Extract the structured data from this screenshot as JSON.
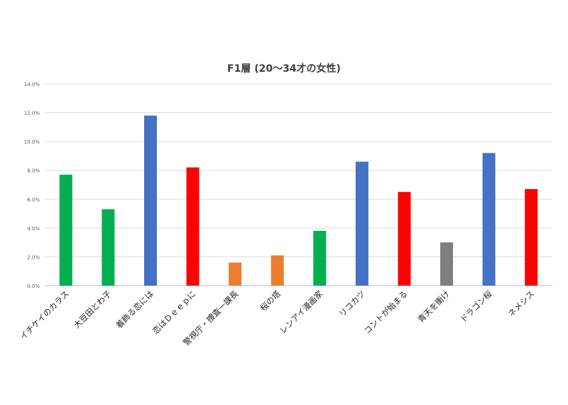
{
  "chart_data": {
    "type": "bar",
    "title": "F1層 (20～34才の女性)",
    "xlabel": "",
    "ylabel": "",
    "ylim": [
      0,
      14
    ],
    "y_ticks": [
      "0.0%",
      "2.0%",
      "4.0%",
      "6.0%",
      "8.0%",
      "10.0%",
      "12.0%",
      "14.0%"
    ],
    "grid": true,
    "legend": "none",
    "categories": [
      "イチケイのカラス",
      "大豆田とわ子",
      "着飾る恋には",
      "恋はＤｅｅｐに",
      "警視庁・捜査一課長",
      "桜の塔",
      "レンアイ漫画家",
      "リコカツ",
      "コントが始まる",
      "青天を衝け",
      "ドラゴン桜",
      "ネメシス"
    ],
    "values": [
      7.7,
      5.3,
      11.8,
      8.2,
      1.6,
      2.1,
      3.8,
      8.6,
      6.5,
      3.0,
      9.2,
      6.7
    ],
    "colors": [
      "#00B050",
      "#00B050",
      "#4472C4",
      "#FF0000",
      "#ED7D31",
      "#ED7D31",
      "#00B050",
      "#4472C4",
      "#FF0000",
      "#7F7F7F",
      "#4472C4",
      "#FF0000"
    ],
    "gridline_color": "#D9D9D9",
    "axis_color": "#BFBFBF",
    "label_color": "#595959"
  }
}
